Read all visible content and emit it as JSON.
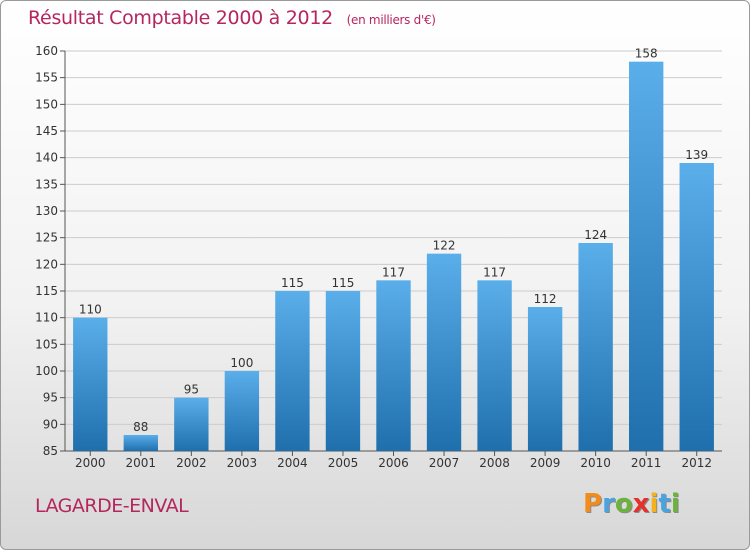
{
  "title": "Résultat Comptable 2000 à 2012",
  "unit": "(en milliers d'€)",
  "commune": "LAGARDE-ENVAL",
  "brand": {
    "letters": [
      "P",
      "r",
      "o",
      "x",
      "i",
      "t",
      "i"
    ],
    "colors": [
      "#f28c1c",
      "#4aa3df",
      "#6cb33e",
      "#e2322b",
      "#f2b21c",
      "#4aa3df",
      "#6cb33e"
    ]
  },
  "colors": {
    "bar_top": "#5aaeea",
    "bar_bottom": "#1f6fad",
    "title": "#b5265f",
    "grid": "#cccccc"
  },
  "chart_data": {
    "type": "bar",
    "categories": [
      "2000",
      "2001",
      "2002",
      "2003",
      "2004",
      "2005",
      "2006",
      "2007",
      "2008",
      "2009",
      "2010",
      "2011",
      "2012"
    ],
    "values": [
      110,
      88,
      95,
      100,
      115,
      115,
      117,
      122,
      117,
      112,
      124,
      158,
      139
    ],
    "ylim": [
      85,
      160
    ],
    "yticks": [
      85,
      90,
      95,
      100,
      105,
      110,
      115,
      120,
      125,
      130,
      135,
      140,
      145,
      150,
      155,
      160
    ],
    "grid": true,
    "data_labels": true
  }
}
